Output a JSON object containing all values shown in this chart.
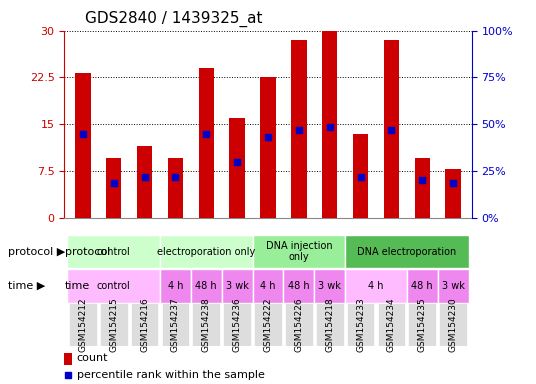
{
  "title": "GDS2840 / 1439325_at",
  "samples": [
    "GSM154212",
    "GSM154215",
    "GSM154216",
    "GSM154237",
    "GSM154238",
    "GSM154236",
    "GSM154222",
    "GSM154226",
    "GSM154218",
    "GSM154233",
    "GSM154234",
    "GSM154235",
    "GSM154230"
  ],
  "bar_heights": [
    23.2,
    9.5,
    11.5,
    9.5,
    24.0,
    16.0,
    22.5,
    28.5,
    30.0,
    13.5,
    28.5,
    9.5,
    7.8
  ],
  "blue_dot_y": [
    13.5,
    5.5,
    6.5,
    6.5,
    13.5,
    9.0,
    13.0,
    14.0,
    14.5,
    6.5,
    14.0,
    6.0,
    5.5
  ],
  "bar_color": "#cc0000",
  "dot_color": "#0000cc",
  "ylim_left": [
    0,
    30
  ],
  "ylim_right": [
    0,
    100
  ],
  "yticks_left": [
    0,
    7.5,
    15,
    22.5,
    30
  ],
  "yticks_right": [
    0,
    25,
    50,
    75,
    100
  ],
  "ytick_labels_left": [
    "0",
    "7.5",
    "15",
    "22.5",
    "30"
  ],
  "ytick_labels_right": [
    "0%",
    "25%",
    "50%",
    "75%",
    "100%"
  ],
  "protocol_groups": [
    {
      "label": "control",
      "start": 0,
      "end": 3,
      "color": "#ccffcc"
    },
    {
      "label": "electroporation only",
      "start": 3,
      "end": 6,
      "color": "#ccffcc"
    },
    {
      "label": "DNA injection only",
      "start": 6,
      "end": 9,
      "color": "#99ff99"
    },
    {
      "label": "DNA electroporation",
      "start": 9,
      "end": 13,
      "color": "#66cc66"
    }
  ],
  "time_groups": [
    {
      "label": "control",
      "start": 0,
      "end": 3,
      "color": "#ffaaff"
    },
    {
      "label": "4 h",
      "start": 3,
      "end": 4,
      "color": "#ee88ee"
    },
    {
      "label": "48 h",
      "start": 4,
      "end": 5,
      "color": "#ee88ee"
    },
    {
      "label": "3 wk",
      "start": 5,
      "end": 6,
      "color": "#ee88ee"
    },
    {
      "label": "4 h",
      "start": 6,
      "end": 7,
      "color": "#ee88ee"
    },
    {
      "label": "48 h",
      "start": 7,
      "end": 8,
      "color": "#ee88ee"
    },
    {
      "label": "3 wk",
      "start": 8,
      "end": 9,
      "color": "#ee88ee"
    },
    {
      "label": "4 h",
      "start": 9,
      "end": 11,
      "color": "#ffaaff"
    },
    {
      "label": "48 h",
      "start": 11,
      "end": 12,
      "color": "#ee88ee"
    },
    {
      "label": "3 wk",
      "start": 12,
      "end": 13,
      "color": "#ee88ee"
    }
  ],
  "legend_count_color": "#cc0000",
  "legend_dot_color": "#0000cc",
  "bg_color": "#ffffff",
  "axis_color_left": "#cc0000",
  "axis_color_right": "#0000cc"
}
